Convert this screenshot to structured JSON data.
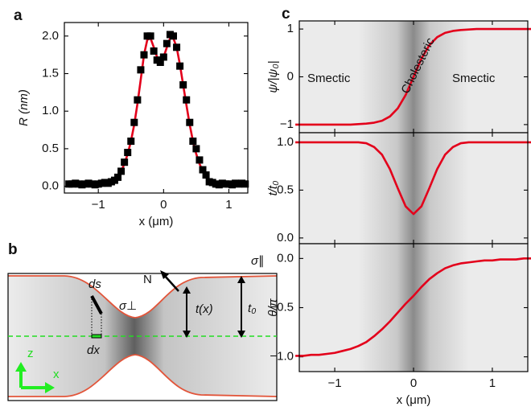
{
  "chart_data": [
    {
      "type": "scatter",
      "panel_label": "a",
      "xlabel": "x (μm)",
      "ylabel": "R (nm)",
      "x": [
        -1.45,
        -1.4,
        -1.35,
        -1.3,
        -1.25,
        -1.2,
        -1.15,
        -1.1,
        -1.05,
        -1.0,
        -0.95,
        -0.9,
        -0.85,
        -0.8,
        -0.75,
        -0.7,
        -0.65,
        -0.6,
        -0.55,
        -0.5,
        -0.45,
        -0.4,
        -0.35,
        -0.3,
        -0.25,
        -0.2,
        -0.15,
        -0.1,
        -0.05,
        0,
        0.05,
        0.1,
        0.15,
        0.2,
        0.25,
        0.3,
        0.35,
        0.4,
        0.45,
        0.5,
        0.55,
        0.6,
        0.65,
        0.7,
        0.75,
        0.8,
        0.85,
        0.9,
        0.95,
        1.0,
        1.05,
        1.1,
        1.15,
        1.2,
        1.25
      ],
      "series": [
        {
          "mode": "line",
          "color": "#e3001b",
          "values": [
            0.02,
            0.02,
            0.02,
            0.02,
            0.02,
            0.02,
            0.02,
            0.02,
            0.02,
            0.02,
            0.02,
            0.02,
            0.03,
            0.05,
            0.08,
            0.13,
            0.2,
            0.3,
            0.43,
            0.6,
            0.82,
            1.1,
            1.42,
            1.75,
            1.95,
            1.97,
            1.85,
            1.72,
            1.68,
            1.72,
            1.85,
            1.97,
            1.97,
            1.85,
            1.62,
            1.35,
            1.08,
            0.82,
            0.6,
            0.43,
            0.3,
            0.2,
            0.13,
            0.08,
            0.05,
            0.03,
            0.02,
            0.02,
            0.02,
            0.02,
            0.02,
            0.02,
            0.02,
            0.02,
            0.02
          ]
        },
        {
          "mode": "markers",
          "color": "#000000",
          "values": [
            0.03,
            0.03,
            0.04,
            0.03,
            0.02,
            0.03,
            0.04,
            0.03,
            0.02,
            0.03,
            0.04,
            0.05,
            0.04,
            0.06,
            0.08,
            0.12,
            0.2,
            0.32,
            0.45,
            0.6,
            0.85,
            1.15,
            1.55,
            1.75,
            2.0,
            2.0,
            1.8,
            1.68,
            1.65,
            1.72,
            1.9,
            2.02,
            2.0,
            1.85,
            1.6,
            1.35,
            1.15,
            0.85,
            0.6,
            0.5,
            0.35,
            0.22,
            0.15,
            0.06,
            0.05,
            0.03,
            0.02,
            0.04,
            0.03,
            0.03,
            0.02,
            0.04,
            0.03,
            0.04,
            0.03
          ]
        }
      ],
      "xlim": [
        -1.52,
        1.29
      ],
      "ylim": [
        -0.09,
        2.18
      ],
      "xticks": [
        {
          "value": -1,
          "label": "−1"
        },
        0,
        1
      ],
      "yticks": [
        {
          "value": 0,
          "label": "0.0"
        },
        {
          "value": 0.5,
          "label": "0.5"
        },
        {
          "value": 1,
          "label": "1.0"
        },
        {
          "value": 1.5,
          "label": "1.5"
        },
        {
          "value": 2,
          "label": "2.0"
        }
      ]
    },
    {
      "type": "line",
      "panel_label": "c",
      "ylabel": "ψ/|ψ₀|",
      "annotations": [
        "Smectic",
        "Cholesteric",
        "Smectic"
      ],
      "x": [
        -1.5,
        -1.4,
        -1.3,
        -1.2,
        -1.1,
        -1.0,
        -0.9,
        -0.8,
        -0.7,
        -0.6,
        -0.5,
        -0.4,
        -0.3,
        -0.2,
        -0.1,
        0,
        0.1,
        0.2,
        0.3,
        0.4,
        0.5,
        0.6,
        0.7,
        0.8,
        0.9,
        1.0,
        1.1,
        1.2,
        1.3,
        1.4,
        1.5
      ],
      "series": [
        {
          "mode": "line",
          "color": "#e3001b",
          "values": [
            -1.0,
            -1.0,
            -1.0,
            -1.0,
            -1.0,
            -1.0,
            -1.0,
            -1.0,
            -0.99,
            -0.98,
            -0.96,
            -0.92,
            -0.83,
            -0.66,
            -0.38,
            0,
            0.38,
            0.66,
            0.83,
            0.92,
            0.96,
            0.98,
            0.99,
            1.0,
            1.0,
            1.0,
            1.0,
            1.0,
            1.0,
            1.0,
            1.0
          ]
        }
      ],
      "xlim": [
        -1.45,
        1.45
      ],
      "ylim": [
        -1.17,
        1.17
      ],
      "yticks": [
        {
          "value": -1,
          "label": "−1"
        },
        0,
        1
      ]
    },
    {
      "type": "line",
      "ylabel": "t/t₀",
      "x": [
        -1.5,
        -1.4,
        -1.3,
        -1.2,
        -1.1,
        -1.0,
        -0.9,
        -0.8,
        -0.7,
        -0.6,
        -0.5,
        -0.4,
        -0.3,
        -0.2,
        -0.1,
        0,
        0.1,
        0.2,
        0.3,
        0.4,
        0.5,
        0.6,
        0.7,
        0.8,
        0.9,
        1.0,
        1.1,
        1.2,
        1.3,
        1.4,
        1.5
      ],
      "series": [
        {
          "mode": "line",
          "color": "#e3001b",
          "values": [
            1.0,
            1.0,
            1.0,
            1.0,
            1.0,
            1.0,
            1.0,
            1.0,
            1.0,
            0.99,
            0.95,
            0.87,
            0.72,
            0.52,
            0.33,
            0.25,
            0.33,
            0.52,
            0.72,
            0.87,
            0.95,
            0.99,
            1.0,
            1.0,
            1.0,
            1.0,
            1.0,
            1.0,
            1.0,
            1.0,
            1.0
          ]
        }
      ],
      "xlim": [
        -1.45,
        1.45
      ],
      "ylim": [
        -0.06,
        1.1
      ],
      "yticks": [
        {
          "value": 0,
          "label": "0.0"
        },
        {
          "value": 0.5,
          "label": "0.5"
        },
        {
          "value": 1,
          "label": "1.0"
        }
      ]
    },
    {
      "type": "line",
      "ylabel": "θ/π",
      "xlabel": "x (μm)",
      "x": [
        -1.5,
        -1.4,
        -1.3,
        -1.2,
        -1.1,
        -1.0,
        -0.9,
        -0.8,
        -0.7,
        -0.6,
        -0.5,
        -0.4,
        -0.3,
        -0.2,
        -0.1,
        0,
        0.1,
        0.2,
        0.3,
        0.4,
        0.5,
        0.6,
        0.7,
        0.8,
        0.9,
        1.0,
        1.1,
        1.2,
        1.3,
        1.4,
        1.5
      ],
      "series": [
        {
          "mode": "line",
          "color": "#e3001b",
          "values": [
            -0.99,
            -0.99,
            -0.98,
            -0.98,
            -0.97,
            -0.96,
            -0.94,
            -0.92,
            -0.89,
            -0.85,
            -0.79,
            -0.72,
            -0.64,
            -0.55,
            -0.46,
            -0.38,
            -0.29,
            -0.21,
            -0.15,
            -0.1,
            -0.07,
            -0.05,
            -0.04,
            -0.03,
            -0.02,
            -0.02,
            -0.01,
            -0.01,
            -0.01,
            0,
            0
          ]
        }
      ],
      "xlim": [
        -1.45,
        1.45
      ],
      "ylim": [
        -1.15,
        0.15
      ],
      "xticks": [
        {
          "value": -1,
          "label": "−1"
        },
        0,
        1
      ],
      "yticks": [
        {
          "value": 0,
          "label": "0.0"
        },
        {
          "value": -0.5,
          "label": "−0.5"
        },
        {
          "value": -1,
          "label": "−1.0"
        }
      ]
    }
  ],
  "diagram": {
    "panel_label": "b",
    "ds": "ds",
    "dx": "dx",
    "normal": "N",
    "sigma_perp": "σ⊥",
    "thickness": "t(x)",
    "thickness_far": "t₀",
    "sigma_par": "σ∥",
    "axis_z": "z",
    "axis_x": "x"
  }
}
